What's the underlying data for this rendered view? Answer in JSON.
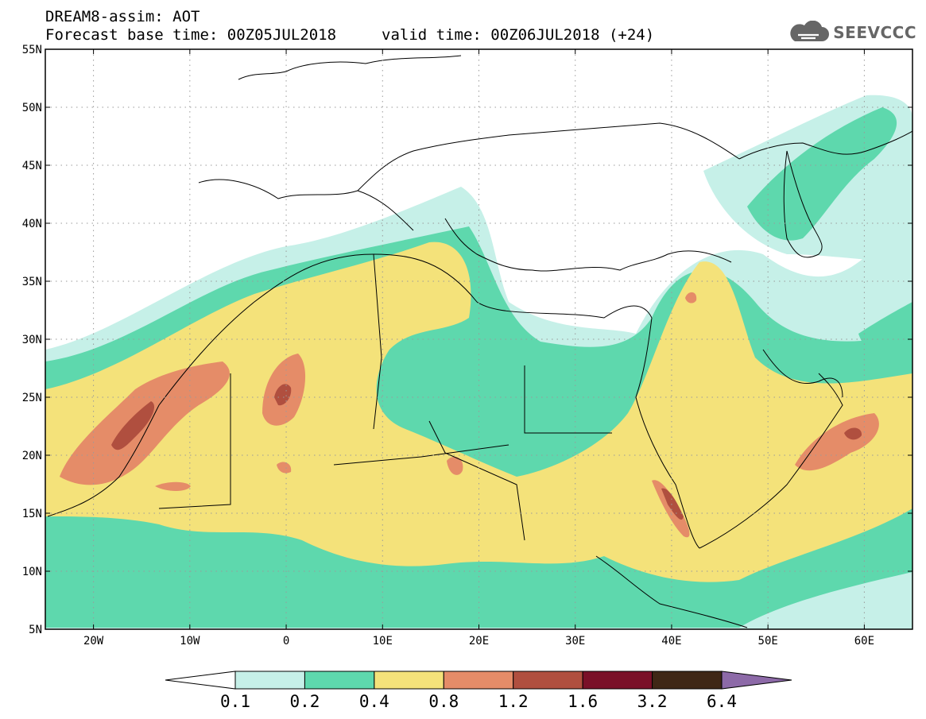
{
  "header": {
    "title": "DREAM8-assim: AOT",
    "base_time": "Forecast base time: 00Z05JUL2018",
    "valid_time": "valid time: 00Z06JUL2018 (+24)"
  },
  "logo": {
    "text": "SEEVCCC",
    "icon": "cloud-logo-icon"
  },
  "map": {
    "lon_range": [
      -25,
      65
    ],
    "lat_range": [
      5,
      55
    ],
    "lon_ticks": [
      "20W",
      "10W",
      "0",
      "10E",
      "20E",
      "30E",
      "40E",
      "50E",
      "60E"
    ],
    "lon_values": [
      -20,
      -10,
      0,
      10,
      20,
      30,
      40,
      50,
      60
    ],
    "lat_ticks": [
      "5N",
      "10N",
      "15N",
      "20N",
      "25N",
      "30N",
      "35N",
      "40N",
      "45N",
      "50N",
      "55N"
    ],
    "lat_values": [
      5,
      10,
      15,
      20,
      25,
      30,
      35,
      40,
      45,
      50,
      55
    ],
    "gridlines": "dotted"
  },
  "colorbar": {
    "levels": [
      "0.1",
      "0.2",
      "0.4",
      "0.8",
      "1.2",
      "1.6",
      "3.2",
      "6.4"
    ],
    "colors": [
      "#ffffff",
      "#c6f0e8",
      "#5ed8ad",
      "#f4e27a",
      "#e58c68",
      "#b04f3f",
      "#7a1028",
      "#3f2716",
      "#8d6aa8"
    ]
  }
}
